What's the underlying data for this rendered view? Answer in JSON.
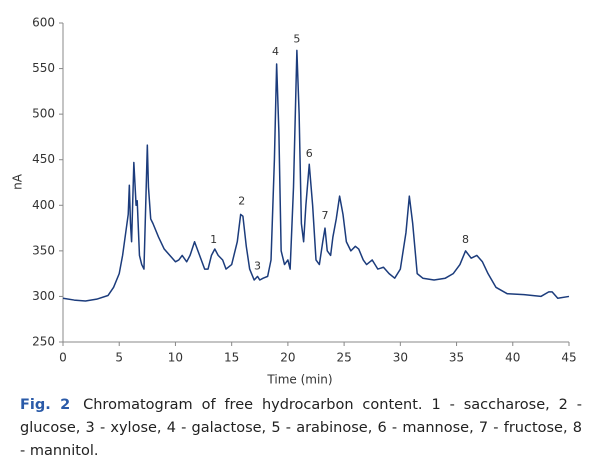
{
  "chart_data": {
    "type": "line",
    "xlabel": "Time (min)",
    "ylabel": "nA",
    "color": "#1c3c7c",
    "xlim": [
      0,
      45
    ],
    "xticks": [
      0,
      5,
      10,
      15,
      20,
      25,
      30,
      35,
      40,
      45
    ],
    "ylim": [
      250,
      600
    ],
    "yticks": [
      250,
      300,
      350,
      400,
      450,
      500,
      550,
      600
    ],
    "grid": false,
    "x": [
      0,
      1,
      2,
      3,
      4,
      4.5,
      5,
      5.3,
      5.6,
      5.8,
      5.9,
      6.0,
      6.1,
      6.3,
      6.5,
      6.6,
      6.8,
      7.0,
      7.2,
      7.4,
      7.5,
      7.6,
      7.8,
      8.0,
      8.5,
      9,
      9.5,
      10,
      10.3,
      10.6,
      11,
      11.3,
      11.7,
      12,
      12.3,
      12.6,
      12.9,
      13.2,
      13.5,
      13.8,
      14.2,
      14.5,
      15,
      15.5,
      15.8,
      16.0,
      16.3,
      16.6,
      17,
      17.3,
      17.5,
      17.8,
      18.2,
      18.5,
      18.8,
      19.0,
      19.2,
      19.4,
      19.7,
      20,
      20.2,
      20.5,
      20.8,
      21.0,
      21.2,
      21.4,
      21.6,
      21.9,
      22.2,
      22.5,
      22.8,
      23.1,
      23.3,
      23.5,
      23.8,
      24,
      24.3,
      24.6,
      24.9,
      25.2,
      25.6,
      26,
      26.3,
      26.7,
      27,
      27.5,
      28,
      28.5,
      29,
      29.5,
      30,
      30.5,
      30.8,
      31.1,
      31.5,
      32,
      33,
      34,
      34.7,
      35.3,
      35.8,
      36.3,
      36.8,
      37.3,
      37.8,
      38.5,
      39.5,
      41,
      42.5,
      43.2,
      43.5,
      44,
      45
    ],
    "values": [
      298,
      296,
      295,
      297,
      301,
      310,
      325,
      345,
      372,
      390,
      422,
      380,
      360,
      447,
      400,
      405,
      345,
      335,
      330,
      420,
      466,
      420,
      385,
      380,
      365,
      352,
      345,
      338,
      340,
      345,
      338,
      345,
      360,
      350,
      340,
      330,
      330,
      345,
      352,
      345,
      340,
      330,
      335,
      360,
      390,
      388,
      355,
      330,
      318,
      322,
      318,
      320,
      322,
      340,
      450,
      555,
      480,
      350,
      335,
      340,
      330,
      420,
      570,
      500,
      380,
      360,
      400,
      445,
      400,
      340,
      335,
      360,
      375,
      350,
      345,
      365,
      385,
      410,
      390,
      360,
      350,
      355,
      352,
      340,
      335,
      340,
      330,
      332,
      325,
      320,
      330,
      370,
      410,
      380,
      325,
      320,
      318,
      320,
      325,
      335,
      350,
      342,
      345,
      338,
      325,
      310,
      303,
      302,
      300,
      305,
      305,
      298,
      300
    ],
    "annotations": [
      {
        "text": "1",
        "x": 13.4,
        "y": 362
      },
      {
        "text": "2",
        "x": 15.9,
        "y": 404
      },
      {
        "text": "3",
        "x": 17.3,
        "y": 333
      },
      {
        "text": "4",
        "x": 18.9,
        "y": 568
      },
      {
        "text": "5",
        "x": 20.8,
        "y": 582
      },
      {
        "text": "6",
        "x": 21.9,
        "y": 456
      },
      {
        "text": "7",
        "x": 23.3,
        "y": 388
      },
      {
        "text": "8",
        "x": 35.8,
        "y": 362
      }
    ]
  },
  "caption": {
    "label": "Fig. 2",
    "text": "Chromatogram of free hydrocarbon content. 1 - saccharose, 2 - glucose, 3 - xylose, 4 - galactose, 5 - arabinose, 6 - mannose, 7 - fructose, 8 - mannitol."
  }
}
